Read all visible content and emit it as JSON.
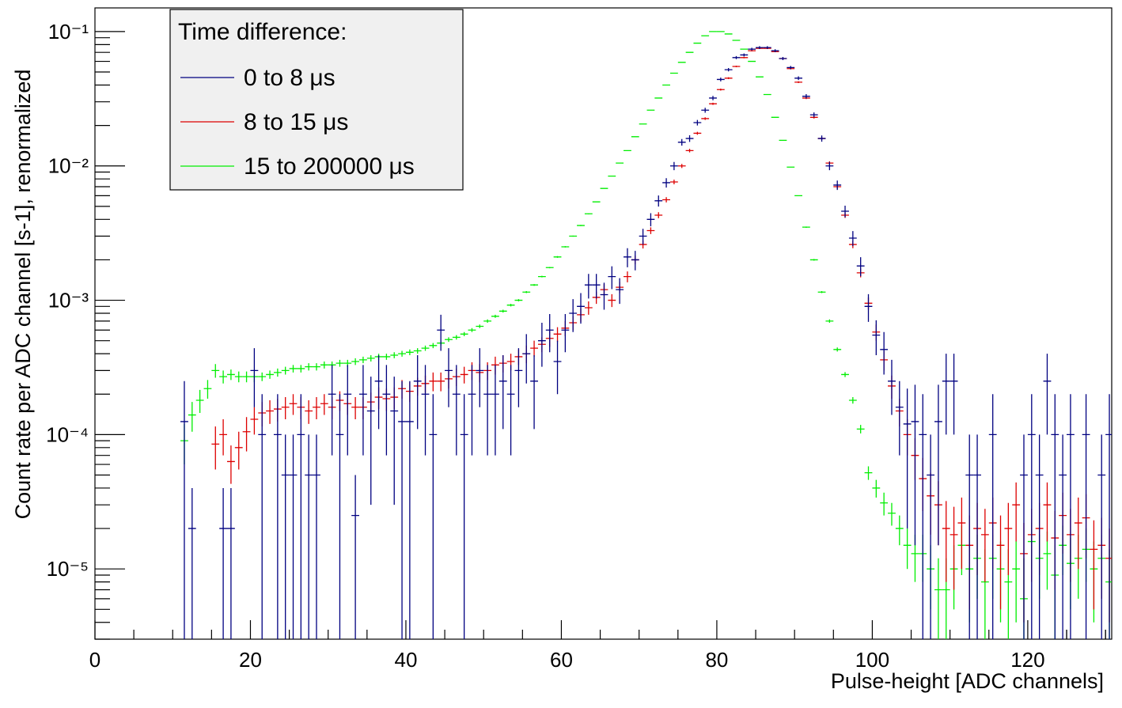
{
  "chart_data": {
    "type": "errorbar",
    "log_y": true,
    "legend_position": "top-left",
    "legend_title": "Time difference:",
    "xlabel": "Pulse-height [ADC channels]",
    "ylabel": "Count rate per ADC channel [s-1], renormalized",
    "xlim": [
      0,
      130.8
    ],
    "ylim": [
      3e-06,
      0.15
    ],
    "xticks": [
      0,
      20,
      40,
      60,
      80,
      100,
      120
    ],
    "yticks": [
      {
        "value": 1e-05,
        "label": "10⁻⁵"
      },
      {
        "value": 0.0001,
        "label": "10⁻⁴"
      },
      {
        "value": 0.001,
        "label": "10⁻³"
      },
      {
        "value": 0.01,
        "label": "10⁻²"
      },
      {
        "value": 0.1,
        "label": "10⁻¹"
      }
    ],
    "x": [
      11.5,
      12.5,
      13.5,
      14.5,
      15.5,
      16.5,
      17.5,
      18.5,
      19.5,
      20.5,
      21.5,
      22.5,
      23.5,
      24.5,
      25.5,
      26.5,
      27.5,
      28.5,
      29.5,
      30.5,
      31.5,
      32.5,
      33.5,
      34.5,
      35.5,
      36.5,
      37.5,
      38.5,
      39.5,
      40.5,
      41.5,
      42.5,
      43.5,
      44.5,
      45.5,
      46.5,
      47.5,
      48.5,
      49.5,
      50.5,
      51.5,
      52.5,
      53.5,
      54.5,
      55.5,
      56.5,
      57.5,
      58.5,
      59.5,
      60.5,
      61.5,
      62.5,
      63.5,
      64.5,
      65.5,
      66.5,
      67.5,
      68.5,
      69.5,
      70.5,
      71.5,
      72.5,
      73.5,
      74.5,
      75.5,
      76.5,
      77.5,
      78.5,
      79.5,
      80.5,
      81.5,
      82.5,
      83.5,
      84.5,
      85.5,
      86.5,
      87.5,
      88.5,
      89.5,
      90.5,
      91.5,
      92.5,
      93.5,
      94.5,
      95.5,
      96.5,
      97.5,
      98.5,
      99.5,
      100.5,
      101.5,
      102.5,
      103.5,
      104.5,
      105.5,
      106.5,
      107.5,
      108.5,
      109.5,
      110.5,
      111.5,
      112.5,
      113.5,
      114.5,
      115.5,
      116.5,
      117.5,
      118.5,
      119.5,
      120.5,
      121.5,
      122.5,
      123.5,
      124.5,
      125.5,
      126.5,
      127.5,
      128.5,
      129.5,
      130.5
    ],
    "series": [
      {
        "name": "15 to 200000 μs",
        "color": "#00ee00",
        "values": [
          9e-05,
          0.00014,
          0.00018,
          0.00022,
          0.0003,
          0.00027,
          0.00028,
          0.00027,
          0.00027,
          0.00027,
          0.00027,
          0.00028,
          0.00029,
          0.0003,
          0.00031,
          0.00031,
          0.00032,
          0.00032,
          0.00033,
          0.00033,
          0.00034,
          0.00034,
          0.00035,
          0.00036,
          0.00037,
          0.00038,
          0.00038,
          0.00039,
          0.0004,
          0.00041,
          0.00042,
          0.00044,
          0.00046,
          0.00048,
          0.00051,
          0.00053,
          0.00056,
          0.0006,
          0.00064,
          0.0007,
          0.00076,
          0.00083,
          0.00092,
          0.001,
          0.00115,
          0.0013,
          0.0015,
          0.00175,
          0.0021,
          0.0025,
          0.003,
          0.0036,
          0.0044,
          0.0054,
          0.0068,
          0.0084,
          0.0105,
          0.013,
          0.0165,
          0.0205,
          0.026,
          0.032,
          0.04,
          0.049,
          0.059,
          0.07,
          0.082,
          0.093,
          0.1,
          0.1,
          0.096,
          0.086,
          0.074,
          0.06,
          0.046,
          0.034,
          0.023,
          0.0155,
          0.0098,
          0.006,
          0.0035,
          0.002,
          0.00115,
          0.0007,
          0.00043,
          0.00028,
          0.00018,
          0.00011,
          5.2e-05,
          4e-05,
          3.1e-05,
          2.6e-05,
          2e-05,
          1.5e-05,
          1.3e-05,
          1.3e-05,
          1e-05,
          7e-06,
          7e-06,
          1e-05,
          1.5e-05,
          1e-05,
          1.2e-05,
          8e-06,
          1.2e-05,
          1e-05,
          8e-06,
          1e-05,
          6e-06,
          1.6e-05,
          1.2e-05,
          1.3e-05,
          9e-06,
          1.5e-05,
          1.1e-05,
          1.2e-05,
          1.4e-05,
          1e-05,
          1.2e-05,
          8e-06
        ],
        "errors": [
          3e-05,
          3.5e-05,
          3.5e-05,
          3.5e-05,
          3.5e-05,
          3e-05,
          2.5e-05,
          2.5e-05,
          2.5e-05,
          2.5e-05,
          2e-05,
          2e-05,
          2e-05,
          2e-05,
          2e-05,
          2e-05,
          2e-05,
          2e-05,
          2e-05,
          2e-05,
          2e-05,
          2e-05,
          2e-05,
          2e-05,
          2e-05,
          2e-05,
          2e-05,
          2e-05,
          2e-05,
          2e-05,
          2e-05,
          2e-05,
          2e-05,
          2e-05,
          2e-05,
          2e-05,
          2e-05,
          2e-05,
          2e-05,
          2e-05,
          2e-05,
          2e-05,
          2e-05,
          2e-05,
          2e-05,
          2e-05,
          2e-05,
          2e-05,
          3e-05,
          3e-05,
          3e-05,
          4e-05,
          4e-05,
          5e-05,
          5e-05,
          6e-05,
          7e-05,
          8e-05,
          9e-05,
          0.0001,
          0.0001,
          0.00012,
          0.00013,
          0.00014,
          0.00015,
          0.00017,
          0.00018,
          0.00019,
          0.0002,
          0.0002,
          0.0002,
          0.00019,
          0.00017,
          0.00016,
          0.00014,
          0.00012,
          0.0001,
          8e-05,
          7e-05,
          5e-05,
          4e-05,
          3e-05,
          2e-05,
          2e-05,
          1.5e-05,
          1.2e-05,
          1e-05,
          8e-06,
          6e-06,
          6e-06,
          6e-06,
          5e-06,
          5e-06,
          5e-06,
          5e-06,
          5e-06,
          5e-06,
          5e-06,
          5e-06,
          5e-06,
          6e-06,
          6e-06,
          6e-06,
          6e-06,
          6e-06,
          6e-06,
          6e-06,
          6e-06,
          6e-06,
          6e-06,
          6e-06,
          6e-06,
          6e-06,
          6e-06,
          6e-06,
          6e-06,
          6e-06,
          6e-06,
          6e-06,
          6e-06
        ]
      },
      {
        "name": "8 to 15 μs",
        "color": "#dd0000",
        "values": [
          null,
          null,
          null,
          null,
          8.5e-05,
          0.0001,
          6.3e-05,
          8e-05,
          0.000105,
          0.00013,
          0.000145,
          0.00015,
          0.000155,
          0.00016,
          0.00017,
          0.00016,
          0.00015,
          0.00016,
          0.00017,
          0.00016,
          0.00018,
          0.00017,
          0.00016,
          0.00016,
          0.000175,
          0.00019,
          0.000185,
          0.00019,
          0.00022,
          0.00021,
          0.00023,
          0.00024,
          0.00025,
          0.00025,
          0.00026,
          0.00027,
          0.00028,
          0.0003,
          0.00029,
          0.0003,
          0.00033,
          0.00034,
          0.00035,
          0.00038,
          0.0004,
          0.00044,
          0.00047,
          0.00052,
          0.00056,
          0.00062,
          0.00068,
          0.00078,
          0.00088,
          0.00105,
          0.0012,
          0.001,
          0.00125,
          0.0015,
          0.002,
          0.0026,
          0.0033,
          0.0043,
          0.0056,
          0.0076,
          0.01,
          0.013,
          0.0175,
          0.0225,
          0.029,
          0.037,
          0.045,
          0.055,
          0.064,
          0.072,
          0.075,
          0.075,
          0.071,
          0.063,
          0.053,
          0.042,
          0.032,
          0.023,
          0.016,
          0.0105,
          0.007,
          0.0043,
          0.0026,
          0.0016,
          0.00095,
          0.00058,
          0.00036,
          0.00023,
          0.00015,
          0.0001,
          7e-05,
          4.7e-05,
          3.5e-05,
          3e-05,
          2e-05,
          1.8e-05,
          2.2e-05,
          1.5e-05,
          2e-05,
          1.8e-05,
          2.2e-05,
          1.5e-05,
          2e-05,
          3e-05,
          1.3e-05,
          1.8e-05,
          2e-05,
          3e-05,
          1.7e-05,
          2.5e-05,
          1.8e-05,
          2.2e-05,
          2.4e-05,
          1.4e-05,
          1.5e-05,
          1.2e-05
        ],
        "errors": [
          null,
          null,
          null,
          null,
          3e-05,
          3e-05,
          2e-05,
          2.5e-05,
          3e-05,
          3e-05,
          3e-05,
          3e-05,
          3e-05,
          3e-05,
          3e-05,
          3e-05,
          3e-05,
          3e-05,
          3e-05,
          3e-05,
          3e-05,
          3e-05,
          3e-05,
          3e-05,
          3e-05,
          3.5e-05,
          3.5e-05,
          3.5e-05,
          3.5e-05,
          3.5e-05,
          3.5e-05,
          3.5e-05,
          4e-05,
          4e-05,
          4e-05,
          4e-05,
          4e-05,
          4.5e-05,
          4.5e-05,
          4.5e-05,
          5e-05,
          5e-05,
          5e-05,
          5e-05,
          6e-05,
          6e-05,
          6e-05,
          7e-05,
          7e-05,
          8e-05,
          8e-05,
          9e-05,
          0.0001,
          0.00011,
          0.00012,
          0.00011,
          0.00012,
          0.00014,
          0.00015,
          0.00017,
          0.00019,
          0.00022,
          0.00025,
          0.0003,
          0.00035,
          0.0004,
          0.00045,
          0.0005,
          0.00055,
          0.0006,
          0.0007,
          0.00075,
          0.0008,
          0.00085,
          0.00085,
          0.00085,
          0.00085,
          0.0008,
          0.00075,
          0.00065,
          0.00055,
          0.00048,
          0.0004,
          0.00032,
          0.00026,
          0.0002,
          0.00016,
          0.00012,
          0.0001,
          8e-05,
          6e-05,
          4.5e-05,
          3.5e-05,
          3e-05,
          2.4e-05,
          2e-05,
          1.7e-05,
          1.5e-05,
          1.2e-05,
          1.1e-05,
          1.2e-05,
          1e-05,
          1.1e-05,
          1e-05,
          1.2e-05,
          1e-05,
          1.1e-05,
          1.4e-05,
          9e-06,
          1e-05,
          1.1e-05,
          1.4e-05,
          1e-05,
          1.2e-05,
          1e-05,
          1.2e-05,
          1.2e-05,
          9e-06,
          9e-06,
          8e-06
        ]
      },
      {
        "name": "0 to 8 μs",
        "color": "#000080",
        "values": [
          0.000125,
          2e-05,
          null,
          null,
          null,
          2e-05,
          2e-05,
          null,
          null,
          0.0003,
          0.0001,
          null,
          0.0001,
          5e-05,
          5e-05,
          0.0001,
          5e-05,
          5e-05,
          null,
          0.0002,
          0.0001,
          0.0002,
          2.5e-05,
          0.0002,
          0.00015,
          0.00025,
          0.0002,
          0.00015,
          0.000125,
          0.000125,
          0.00025,
          0.0002,
          0.0001,
          0.0006,
          0.0003,
          0.0002,
          0.0001,
          0.0002,
          0.0003,
          0.0002,
          0.0002,
          0.00025,
          0.0002,
          0.0003,
          0.0004,
          0.00025,
          0.0005,
          0.0006,
          0.00035,
          0.0006,
          0.0008,
          0.0009,
          0.0013,
          0.0013,
          0.0011,
          0.0015,
          0.0012,
          0.0021,
          0.002,
          0.003,
          0.004,
          0.0055,
          0.0075,
          0.01,
          0.015,
          0.016,
          0.021,
          0.026,
          0.032,
          0.044,
          0.052,
          0.064,
          0.067,
          0.074,
          0.076,
          0.076,
          0.072,
          0.063,
          0.054,
          0.045,
          0.033,
          0.024,
          0.016,
          0.01,
          0.0072,
          0.0046,
          0.0029,
          0.0018,
          0.0009,
          0.00055,
          0.00043,
          0.00025,
          0.00016,
          0.00012,
          0.000125,
          0.0001,
          5e-05,
          0.000125,
          0.00025,
          0.00025,
          null,
          5e-05,
          5e-05,
          null,
          0.0001,
          null,
          null,
          null,
          5e-05,
          0.0001,
          5e-05,
          0.00025,
          0.0001,
          5e-05,
          0.0001,
          null,
          0.0001,
          null,
          5e-05,
          0.0001
        ],
        "errors": [
          0.000125,
          2e-05,
          null,
          null,
          null,
          2e-05,
          2e-05,
          null,
          null,
          0.00014,
          0.0001,
          null,
          0.0001,
          5e-05,
          5e-05,
          0.0001,
          5e-05,
          5e-05,
          null,
          0.00013,
          0.0001,
          0.00013,
          2.5e-05,
          0.00013,
          0.00012,
          0.00014,
          0.00013,
          0.00012,
          0.000125,
          0.000125,
          0.00014,
          0.00013,
          0.0001,
          0.00018,
          0.00014,
          0.00013,
          0.0001,
          0.00013,
          0.00014,
          0.00013,
          0.00013,
          0.00014,
          0.00013,
          0.00014,
          0.00016,
          0.00014,
          0.00018,
          0.00019,
          0.00015,
          0.00019,
          0.00022,
          0.00023,
          0.00027,
          0.00027,
          0.00025,
          0.00029,
          0.00026,
          0.00034,
          0.00033,
          0.0004,
          0.00045,
          0.00052,
          0.0006,
          0.0007,
          0.00085,
          0.0009,
          0.001,
          0.0011,
          0.0012,
          0.0014,
          0.0015,
          0.0017,
          0.0017,
          0.0018,
          0.0018,
          0.0018,
          0.0018,
          0.0017,
          0.0015,
          0.0014,
          0.0012,
          0.001,
          0.00085,
          0.0007,
          0.00058,
          0.00046,
          0.00037,
          0.00029,
          0.00021,
          0.00016,
          0.00015,
          0.00011,
          9e-05,
          0.0001,
          0.00011,
          0.0001,
          5e-05,
          0.00011,
          0.00015,
          0.00015,
          null,
          5e-05,
          5e-05,
          null,
          0.0001,
          null,
          null,
          null,
          5e-05,
          0.0001,
          5e-05,
          0.00015,
          0.0001,
          5e-05,
          0.0001,
          null,
          0.0001,
          null,
          5e-05,
          0.0001
        ]
      }
    ]
  }
}
